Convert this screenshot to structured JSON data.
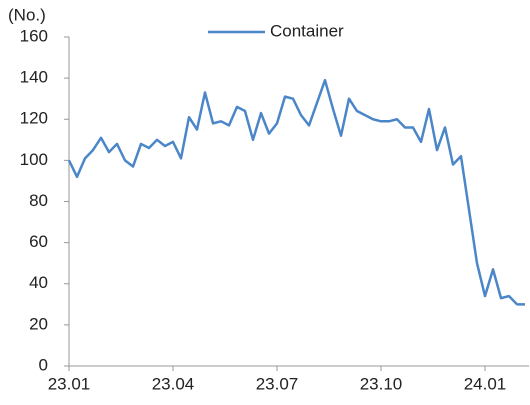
{
  "chart_data": {
    "type": "line",
    "y_unit_label": "(No.)",
    "categories": [
      "23.01",
      null,
      null,
      null,
      null,
      null,
      null,
      null,
      null,
      null,
      null,
      null,
      null,
      "23.04",
      null,
      null,
      null,
      null,
      null,
      null,
      null,
      null,
      null,
      null,
      null,
      null,
      "23.07",
      null,
      null,
      null,
      null,
      null,
      null,
      null,
      null,
      null,
      null,
      null,
      null,
      "23.10",
      null,
      null,
      null,
      null,
      null,
      null,
      null,
      null,
      null,
      null,
      null,
      null,
      "24.01",
      null,
      null,
      null,
      null,
      null
    ],
    "series": [
      {
        "name": "Container",
        "color": "#4a86c8",
        "values": [
          100,
          92,
          101,
          105,
          111,
          104,
          108,
          100,
          97,
          108,
          106,
          110,
          107,
          109,
          101,
          121,
          115,
          133,
          118,
          119,
          117,
          126,
          124,
          110,
          123,
          113,
          118,
          131,
          130,
          122,
          117,
          128,
          139,
          125,
          112,
          130,
          124,
          122,
          120,
          119,
          119,
          120,
          116,
          116,
          109,
          125,
          105,
          116,
          98,
          102,
          76,
          50,
          34,
          47,
          33,
          34,
          30,
          30
        ]
      }
    ],
    "ylim": [
      0,
      160
    ],
    "yticks": [
      0,
      20,
      40,
      60,
      80,
      100,
      120,
      140,
      160
    ],
    "grid": false
  }
}
